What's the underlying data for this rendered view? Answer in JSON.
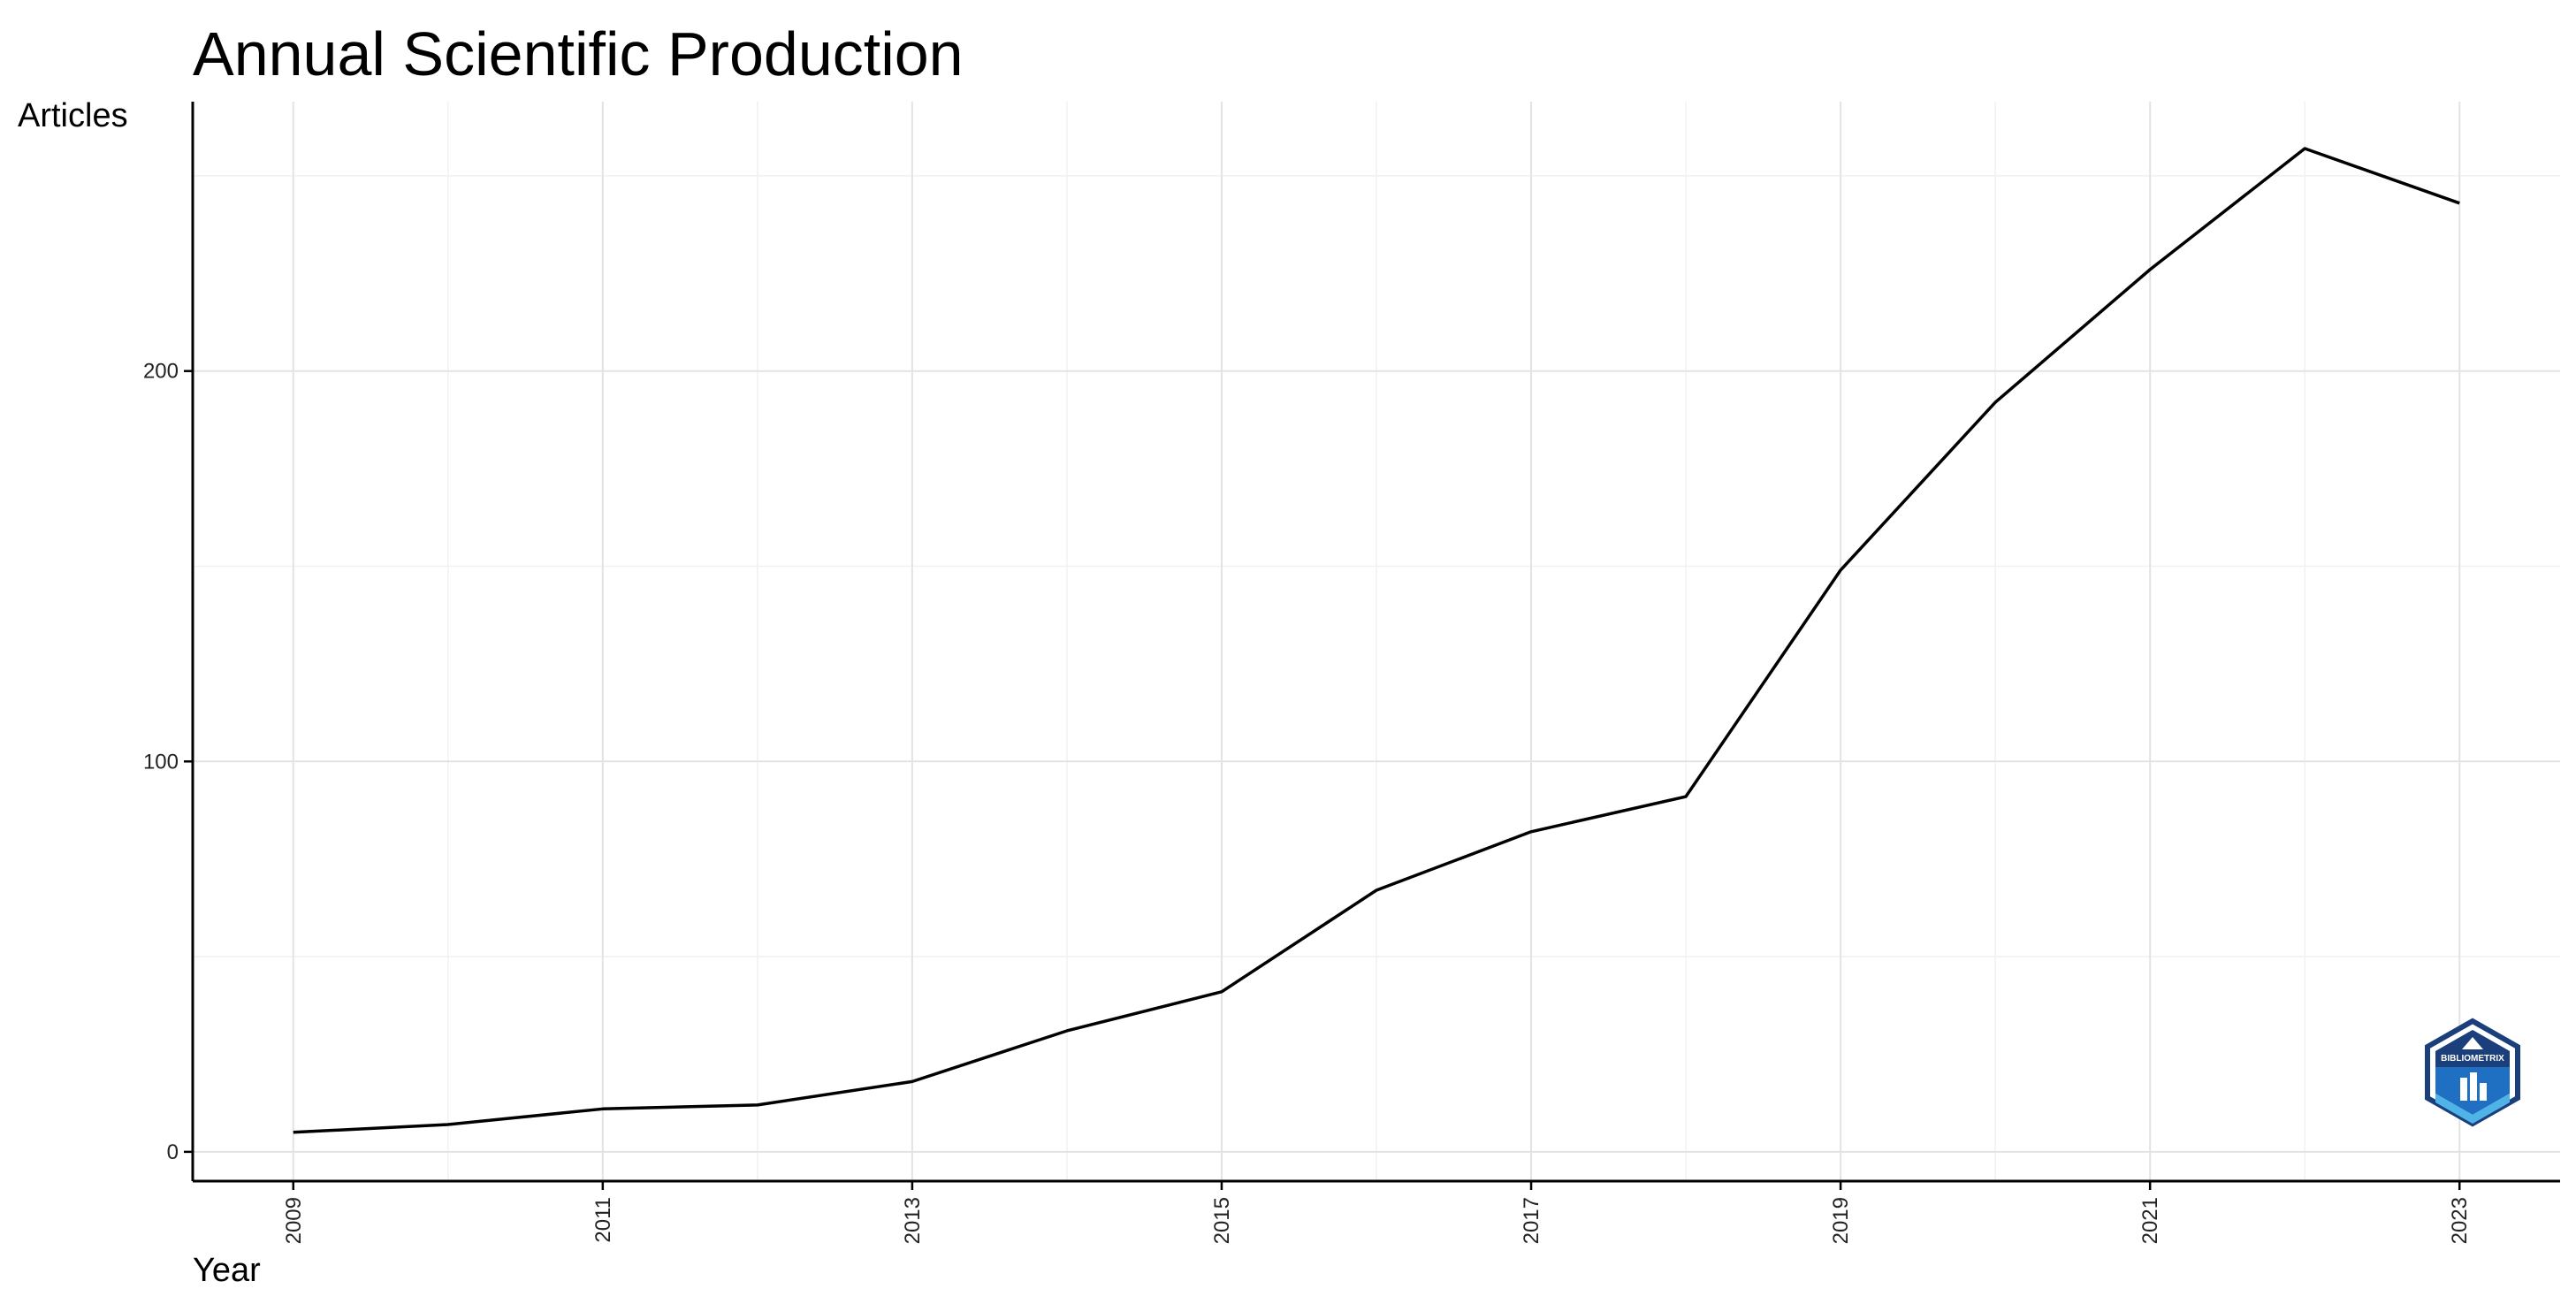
{
  "chart_data": {
    "type": "line",
    "title": "Annual Scientific Production",
    "xlabel": "Year",
    "ylabel": "Articles",
    "x": [
      2009,
      2010,
      2011,
      2012,
      2013,
      2014,
      2015,
      2016,
      2017,
      2018,
      2019,
      2020,
      2021,
      2022,
      2023
    ],
    "series": [
      {
        "values": [
          5,
          7,
          11,
          12,
          18,
          31,
          41,
          67,
          82,
          91,
          149,
          192,
          226,
          257,
          243
        ]
      }
    ],
    "x_ticks": [
      "2009",
      "2011",
      "2013",
      "2015",
      "2017",
      "2019",
      "2021",
      "2023"
    ],
    "y_ticks": [
      "0",
      "100",
      "200"
    ],
    "xlim": [
      2008.35,
      2023.65
    ],
    "ylim": [
      -7.5,
      269
    ],
    "grid": true,
    "legend": "none",
    "line_color": "#000000"
  },
  "logo": {
    "text": "BIBLIOMETRIX",
    "colors": {
      "dark": "#1a3f7a",
      "mid": "#1f6fc2",
      "light": "#4fb3e8"
    }
  }
}
